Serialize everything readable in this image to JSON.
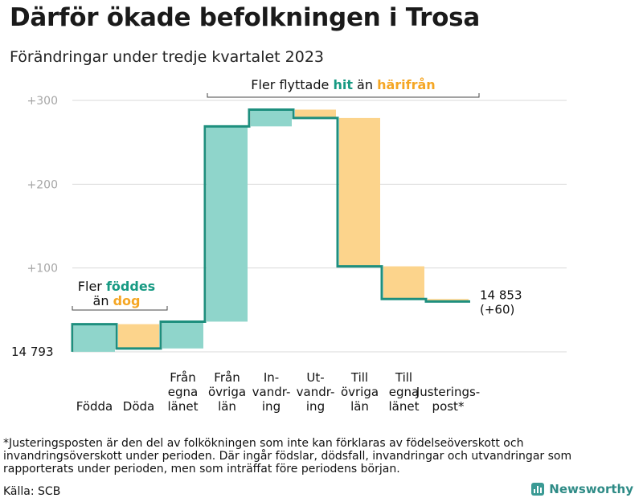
{
  "title": "Därför ökade befolkningen i Trosa",
  "subtitle": "Förändringar under tredje kvartalet 2023",
  "footnote": "*Justeringsposten är den del av folkökningen som inte kan förklaras av födelseöverskott och invandringsöverskott under perioden. Där ingår födslar, dödsfall, invandringar och utvandringar som rapporterats under perioden, men som inträffat före periodens början.",
  "source": "Källa: SCB",
  "brand": "Newsworthy",
  "colors": {
    "increase": "#8fd5cb",
    "decrease": "#fcd48c",
    "line": "#1e8f7e",
    "grid": "#d9d9d9",
    "axis_text": "#a6a6a6",
    "hit": "#179a83",
    "harifran": "#f5a623"
  },
  "chart_data": {
    "type": "waterfall",
    "start_value": 14793,
    "start_label": "14  793",
    "end_label_line1": "14 853",
    "end_label_line2": "(+60)",
    "y_axis": {
      "ylim": [
        0,
        300
      ],
      "ticks": [
        100,
        200,
        300
      ],
      "tick_labels": [
        "+100",
        "+200",
        "+300"
      ]
    },
    "steps": [
      {
        "label_lines": [
          "Födda"
        ],
        "delta": 33
      },
      {
        "label_lines": [
          "Döda"
        ],
        "delta": -29
      },
      {
        "label_lines": [
          "Från",
          "egna",
          "länet"
        ],
        "delta": 32
      },
      {
        "label_lines": [
          "Från",
          "övriga",
          "län"
        ],
        "delta": 233
      },
      {
        "label_lines": [
          "In-",
          "vandr-",
          "ing"
        ],
        "delta": 20
      },
      {
        "label_lines": [
          "Ut-",
          "vandr-",
          "ing"
        ],
        "delta": -10
      },
      {
        "label_lines": [
          "Till",
          "övriga",
          "län"
        ],
        "delta": -177
      },
      {
        "label_lines": [
          "Till",
          "egna",
          "länet"
        ],
        "delta": -39
      },
      {
        "label_lines": [
          "Justerings-",
          "post*"
        ],
        "delta": -3
      }
    ],
    "annotations": {
      "births": {
        "prefix": "Fler ",
        "highlight": "föddes",
        "line2_prefix": "än ",
        "line2_highlight": "dog"
      },
      "migration": {
        "prefix": "Fler flyttade ",
        "highlight1": "hit",
        "middle": " än ",
        "highlight2": "härifrån"
      }
    }
  }
}
